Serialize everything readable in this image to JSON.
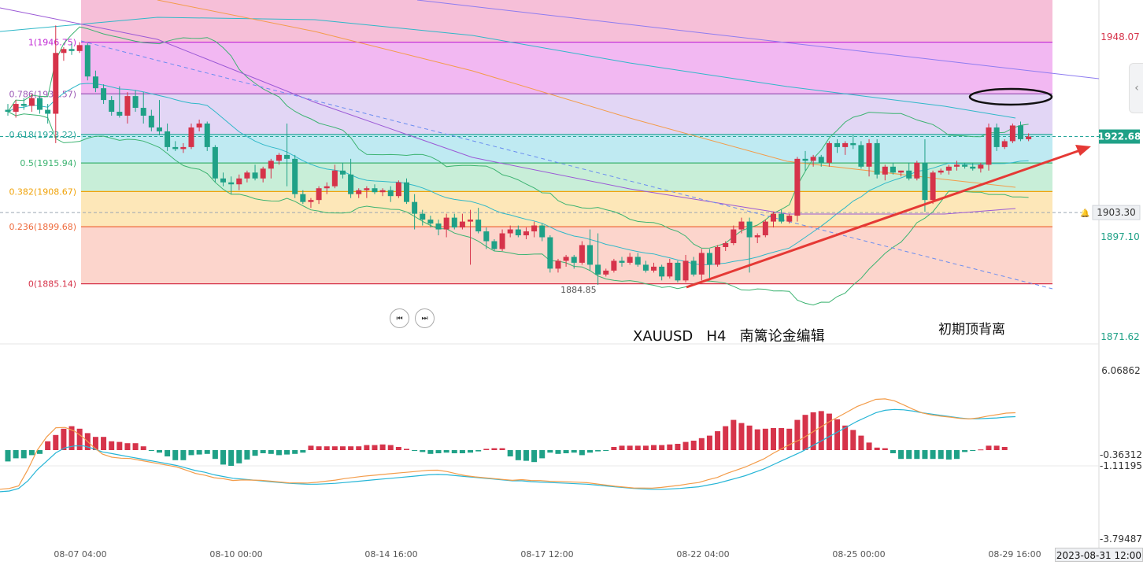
{
  "chart_data": [
    {
      "type": "candlestick",
      "symbol_title": "XAUUSD   H4   南篱论金编辑",
      "y_axis": {
        "ticks": [
          "1948.07",
          "1897.10",
          "1871.62"
        ],
        "current_price_tag": "1922.68",
        "alert_price_tag": "1903.30",
        "range": [
          1862,
          1962
        ]
      },
      "x_axis": {
        "labels": [
          "08-07 04:00",
          "08-10 00:00",
          "08-14 16:00",
          "08-17 12:00",
          "08-22 04:00",
          "08-25 00:00",
          "08-29 16:00"
        ],
        "cursor_time": "2023-08-31 12:00"
      },
      "fibonacci": {
        "levels": [
          {
            "label": "1(1946.75)",
            "price": 1946.75,
            "line_color": "#c026d3",
            "fill": "#f2b8f2"
          },
          {
            "label": "0.786(1933.57)",
            "price": 1933.57,
            "line_color": "#9b59b6",
            "fill": "#e2d6f5"
          },
          {
            "label": "0.618(1923.22)",
            "price": 1923.22,
            "line_color": "#26a69a",
            "fill": "#bfeaf2"
          },
          {
            "label": "0.5(1915.94)",
            "price": 1915.94,
            "line_color": "#3cb371",
            "fill": "#c8eed8"
          },
          {
            "label": "0.382(1908.67)",
            "price": 1908.67,
            "line_color": "#f0a30a",
            "fill": "#fde7b8"
          },
          {
            "label": "0.236(1899.68)",
            "price": 1899.68,
            "line_color": "#ee6a3c",
            "fill": "#fcd5cc"
          },
          {
            "label": "0(1885.14)",
            "price": 1885.14,
            "line_color": "#d6334a",
            "fill": ""
          }
        ]
      },
      "low_annotation": "1884.85",
      "annotation_top_right": "初期顶背离",
      "colors": {
        "up": "#d6334a",
        "down": "#1fa187",
        "trend_arrow": "#e53935",
        "ellipse": "#111111"
      },
      "candles_ohlc": [
        [
          1929.5,
          1931.0,
          1928.0,
          1929.0
        ],
        [
          1929.0,
          1932.0,
          1927.5,
          1931.0
        ],
        [
          1931.0,
          1932.5,
          1929.5,
          1930.5
        ],
        [
          1930.5,
          1933.5,
          1929.0,
          1932.5
        ],
        [
          1932.5,
          1933.0,
          1928.5,
          1929.5
        ],
        [
          1929.5,
          1931.0,
          1926.0,
          1928.5
        ],
        [
          1928.5,
          1951.0,
          1921.0,
          1944.0
        ],
        [
          1944.0,
          1945.5,
          1942.0,
          1945.0
        ],
        [
          1945.0,
          1946.5,
          1943.5,
          1944.5
        ],
        [
          1944.5,
          1946.75,
          1944.0,
          1946.0
        ],
        [
          1946.0,
          1946.5,
          1937.0,
          1938.0
        ],
        [
          1938.0,
          1939.5,
          1934.0,
          1935.0
        ],
        [
          1935.0,
          1936.0,
          1931.0,
          1932.0
        ],
        [
          1932.0,
          1933.0,
          1928.0,
          1929.0
        ],
        [
          1929.0,
          1935.5,
          1927.5,
          1928.0
        ],
        [
          1928.0,
          1934.0,
          1926.0,
          1933.0
        ],
        [
          1933.0,
          1934.5,
          1929.0,
          1930.0
        ],
        [
          1930.0,
          1934.0,
          1926.0,
          1928.0
        ],
        [
          1928.0,
          1929.5,
          1924.0,
          1925.0
        ],
        [
          1925.0,
          1932.0,
          1923.0,
          1924.0
        ],
        [
          1924.0,
          1926.0,
          1919.0,
          1920.0
        ],
        [
          1920.0,
          1921.5,
          1919.0,
          1919.5
        ],
        [
          1919.5,
          1921.0,
          1918.5,
          1920.0
        ],
        [
          1920.0,
          1926.0,
          1919.5,
          1925.0
        ],
        [
          1925.0,
          1927.0,
          1924.0,
          1926.0
        ],
        [
          1926.0,
          1926.5,
          1919.0,
          1920.0
        ],
        [
          1920.0,
          1920.5,
          1911.0,
          1912.0
        ],
        [
          1912.0,
          1913.5,
          1910.0,
          1911.0
        ],
        [
          1911.0,
          1912.5,
          1908.0,
          1910.5
        ],
        [
          1910.5,
          1913.0,
          1909.0,
          1912.0
        ],
        [
          1912.0,
          1914.0,
          1911.0,
          1913.5
        ],
        [
          1913.5,
          1915.5,
          1911.5,
          1912.0
        ],
        [
          1912.0,
          1915.0,
          1911.0,
          1914.5
        ],
        [
          1914.5,
          1917.0,
          1912.0,
          1916.5
        ],
        [
          1916.5,
          1918.5,
          1915.5,
          1918.0
        ],
        [
          1918.0,
          1926.0,
          1910.0,
          1917.0
        ],
        [
          1917.0,
          1918.0,
          1907.0,
          1908.0
        ],
        [
          1908.0,
          1909.0,
          1905.5,
          1906.0
        ],
        [
          1906.0,
          1907.0,
          1904.5,
          1906.5
        ],
        [
          1906.5,
          1910.0,
          1905.5,
          1909.5
        ],
        [
          1909.5,
          1911.0,
          1908.0,
          1910.0
        ],
        [
          1910.0,
          1915.5,
          1909.5,
          1914.0
        ],
        [
          1914.0,
          1916.0,
          1912.0,
          1913.0
        ],
        [
          1913.0,
          1917.0,
          1907.0,
          1908.0
        ],
        [
          1908.0,
          1909.5,
          1907.0,
          1909.0
        ],
        [
          1909.0,
          1910.0,
          1907.0,
          1909.5
        ],
        [
          1909.5,
          1910.5,
          1908.0,
          1908.5
        ],
        [
          1908.5,
          1909.5,
          1907.5,
          1909.0
        ],
        [
          1909.0,
          1910.0,
          1906.0,
          1907.5
        ],
        [
          1907.5,
          1911.5,
          1907.0,
          1911.0
        ],
        [
          1911.0,
          1912.0,
          1905.5,
          1906.0
        ],
        [
          1906.0,
          1908.0,
          1899.0,
          1903.0
        ],
        [
          1903.0,
          1904.0,
          1900.0,
          1901.5
        ],
        [
          1901.5,
          1902.5,
          1899.5,
          1900.5
        ],
        [
          1900.5,
          1901.5,
          1897.5,
          1899.0
        ],
        [
          1899.0,
          1903.0,
          1897.0,
          1902.0
        ],
        [
          1902.0,
          1903.0,
          1899.0,
          1899.5
        ],
        [
          1899.5,
          1903.0,
          1899.0,
          1901.0
        ],
        [
          1901.0,
          1904.0,
          1890.0,
          1901.5
        ],
        [
          1901.5,
          1904.5,
          1898.0,
          1898.5
        ],
        [
          1898.5,
          1899.5,
          1894.0,
          1896.0
        ],
        [
          1896.0,
          1896.5,
          1893.5,
          1894.0
        ],
        [
          1894.0,
          1899.0,
          1893.5,
          1898.0
        ],
        [
          1898.0,
          1900.0,
          1897.0,
          1899.0
        ],
        [
          1899.0,
          1900.0,
          1897.0,
          1897.5
        ],
        [
          1897.5,
          1899.5,
          1896.5,
          1898.5
        ],
        [
          1898.5,
          1901.0,
          1897.0,
          1900.0
        ],
        [
          1900.0,
          1900.5,
          1896.0,
          1897.0
        ],
        [
          1897.0,
          1897.5,
          1888.0,
          1889.0
        ],
        [
          1889.0,
          1891.5,
          1888.0,
          1891.0
        ],
        [
          1891.0,
          1892.5,
          1889.5,
          1892.0
        ],
        [
          1892.0,
          1892.5,
          1889.0,
          1890.5
        ],
        [
          1890.5,
          1896.0,
          1890.0,
          1895.0
        ],
        [
          1895.0,
          1899.0,
          1888.5,
          1890.0
        ],
        [
          1890.0,
          1898.0,
          1884.85,
          1887.5
        ],
        [
          1887.5,
          1889.0,
          1887.0,
          1888.5
        ],
        [
          1888.5,
          1891.5,
          1888.0,
          1891.0
        ],
        [
          1891.0,
          1892.0,
          1889.5,
          1890.5
        ],
        [
          1890.5,
          1893.0,
          1890.0,
          1892.0
        ],
        [
          1892.0,
          1893.0,
          1889.5,
          1890.0
        ],
        [
          1890.0,
          1891.0,
          1888.0,
          1888.5
        ],
        [
          1888.5,
          1890.5,
          1888.0,
          1889.5
        ],
        [
          1889.5,
          1890.0,
          1886.0,
          1887.0
        ],
        [
          1887.0,
          1891.5,
          1886.5,
          1890.5
        ],
        [
          1890.5,
          1891.0,
          1885.5,
          1886.0
        ],
        [
          1886.0,
          1892.5,
          1885.5,
          1891.0
        ],
        [
          1891.0,
          1892.0,
          1887.0,
          1887.5
        ],
        [
          1887.5,
          1894.0,
          1886.0,
          1893.0
        ],
        [
          1893.0,
          1894.0,
          1886.5,
          1890.0
        ],
        [
          1890.0,
          1895.0,
          1889.5,
          1894.5
        ],
        [
          1894.5,
          1896.0,
          1893.5,
          1895.5
        ],
        [
          1895.5,
          1900.0,
          1895.0,
          1899.0
        ],
        [
          1899.0,
          1902.0,
          1898.0,
          1901.0
        ],
        [
          1901.0,
          1902.0,
          1888.0,
          1897.0
        ],
        [
          1897.0,
          1898.0,
          1895.5,
          1897.5
        ],
        [
          1897.5,
          1901.5,
          1897.0,
          1901.0
        ],
        [
          1901.0,
          1903.5,
          1899.5,
          1903.0
        ],
        [
          1903.0,
          1904.0,
          1900.5,
          1901.0
        ],
        [
          1901.0,
          1903.0,
          1900.5,
          1902.5
        ],
        [
          1902.5,
          1917.5,
          1901.0,
          1917.0
        ],
        [
          1917.0,
          1919.0,
          1914.0,
          1916.5
        ],
        [
          1916.5,
          1918.0,
          1915.0,
          1917.5
        ],
        [
          1917.5,
          1918.0,
          1915.0,
          1916.0
        ],
        [
          1916.0,
          1921.5,
          1915.0,
          1921.0
        ],
        [
          1921.0,
          1922.0,
          1918.5,
          1920.0
        ],
        [
          1920.0,
          1921.5,
          1918.0,
          1921.0
        ],
        [
          1921.0,
          1923.0,
          1919.5,
          1920.5
        ],
        [
          1920.5,
          1921.5,
          1914.5,
          1915.0
        ],
        [
          1915.0,
          1922.0,
          1912.5,
          1921.0
        ],
        [
          1921.0,
          1922.0,
          1912.0,
          1913.0
        ],
        [
          1913.0,
          1915.5,
          1911.5,
          1915.0
        ],
        [
          1915.0,
          1916.0,
          1913.0,
          1913.5
        ],
        [
          1913.5,
          1914.0,
          1912.5,
          1914.0
        ],
        [
          1914.0,
          1916.0,
          1911.5,
          1912.0
        ],
        [
          1912.0,
          1916.5,
          1911.5,
          1916.0
        ],
        [
          1916.0,
          1922.0,
          1903.5,
          1906.5
        ],
        [
          1906.5,
          1914.0,
          1905.5,
          1913.5
        ],
        [
          1913.5,
          1914.5,
          1913.0,
          1914.0
        ],
        [
          1914.0,
          1915.5,
          1913.0,
          1915.0
        ],
        [
          1915.0,
          1916.5,
          1914.0,
          1915.5
        ],
        [
          1915.5,
          1916.0,
          1914.5,
          1915.0
        ],
        [
          1915.0,
          1916.0,
          1914.0,
          1914.5
        ],
        [
          1914.5,
          1916.0,
          1913.5,
          1915.5
        ],
        [
          1915.5,
          1926.0,
          1914.0,
          1925.0
        ],
        [
          1925.0,
          1926.0,
          1919.0,
          1920.0
        ],
        [
          1920.0,
          1922.0,
          1919.5,
          1921.5
        ],
        [
          1921.5,
          1926.0,
          1921.0,
          1925.5
        ],
        [
          1925.5,
          1926.5,
          1921.5,
          1922.0
        ],
        [
          1922.0,
          1923.5,
          1921.5,
          1922.68
        ]
      ]
    },
    {
      "type": "macd",
      "y_axis": {
        "ticks": [
          "6.06862",
          "-0.36312",
          "-1.11195",
          "-3.79487"
        ]
      },
      "histogram": [
        -1.8,
        -1.3,
        -1.3,
        -0.8,
        -0.6,
        1.4,
        2.4,
        3.4,
        3.8,
        3.4,
        2.7,
        2.1,
        2.1,
        1.4,
        1.3,
        1.1,
        1.1,
        0.6,
        -0.1,
        -0.4,
        -1.0,
        -1.6,
        -1.6,
        -0.8,
        -0.7,
        -0.6,
        -1.4,
        -2.3,
        -2.5,
        -2.1,
        -1.5,
        -0.9,
        -0.5,
        -0.6,
        -0.8,
        -0.7,
        -0.6,
        -0.4,
        0.7,
        0.6,
        0.6,
        0.6,
        0.6,
        0.6,
        0.6,
        0.8,
        0.8,
        0.9,
        0.8,
        0.5,
        0.2,
        -0.1,
        -0.3,
        -0.6,
        -0.5,
        -0.4,
        -0.5,
        -0.5,
        -0.4,
        -0.2,
        0.2,
        0.3,
        0.3,
        -1.0,
        -1.6,
        -1.7,
        -1.9,
        -1.3,
        -0.4,
        -0.6,
        -0.5,
        -0.4,
        -0.8,
        -0.4,
        -0.2,
        -0.1,
        0.5,
        0.7,
        0.7,
        0.7,
        0.7,
        0.8,
        0.8,
        0.9,
        1.0,
        1.3,
        1.5,
        1.9,
        2.3,
        3.0,
        3.8,
        4.8,
        4.3,
        3.9,
        3.3,
        3.4,
        3.5,
        3.5,
        3.4,
        4.8,
        5.6,
        6.0,
        6.2,
        5.8,
        4.9,
        3.9,
        3.2,
        2.3,
        1.2,
        0.4,
        0.3,
        -0.5,
        -1.4,
        -1.4,
        -1.4,
        -1.4,
        -1.4,
        -1.4,
        -1.5,
        -1.4,
        -0.3,
        -0.1,
        0.1,
        0.7,
        0.7,
        0.5
      ],
      "signal_line": [
        -3.79,
        -3.7,
        -3.4,
        -2.5,
        -1.2,
        -0.2,
        0.8,
        1.4,
        1.6,
        1.6,
        1.3,
        0.9,
        0.7,
        0.5,
        0.3,
        0.1,
        -0.1,
        -0.3,
        -0.5,
        -0.7,
        -1.0,
        -1.3,
        -1.5,
        -1.8,
        -2.0,
        -2.2,
        -2.3,
        -2.4,
        -2.5,
        -2.6,
        -2.7,
        -2.8,
        -2.85,
        -2.9,
        -2.9,
        -2.85,
        -2.8,
        -2.7,
        -2.6,
        -2.5,
        -2.4,
        -2.3,
        -2.2,
        -2.1,
        -2.0,
        -1.9,
        -1.8,
        -1.75,
        -1.8,
        -1.9,
        -2.0,
        -2.1,
        -2.2,
        -2.3,
        -2.4,
        -2.5,
        -2.5,
        -2.6,
        -2.65,
        -2.7,
        -2.75,
        -2.8,
        -2.85,
        -2.9,
        -3.0,
        -3.1,
        -3.2,
        -3.3,
        -3.4,
        -3.45,
        -3.5,
        -3.5,
        -3.45,
        -3.4,
        -3.3,
        -3.2,
        -3.0,
        -2.8,
        -2.5,
        -2.2,
        -1.9,
        -1.5,
        -1.1,
        -0.6,
        -0.1,
        0.4,
        0.9,
        1.5,
        2.1,
        2.7,
        3.3,
        3.9,
        4.5,
        5.0,
        5.5,
        5.8,
        5.9,
        5.85,
        5.7,
        5.5,
        5.35,
        5.2,
        5.05,
        4.9,
        4.8,
        4.8,
        4.85,
        4.9,
        5.0,
        5.05
      ]
    }
  ],
  "status": {
    "cursor_time": "2023-08-31 12:00"
  }
}
